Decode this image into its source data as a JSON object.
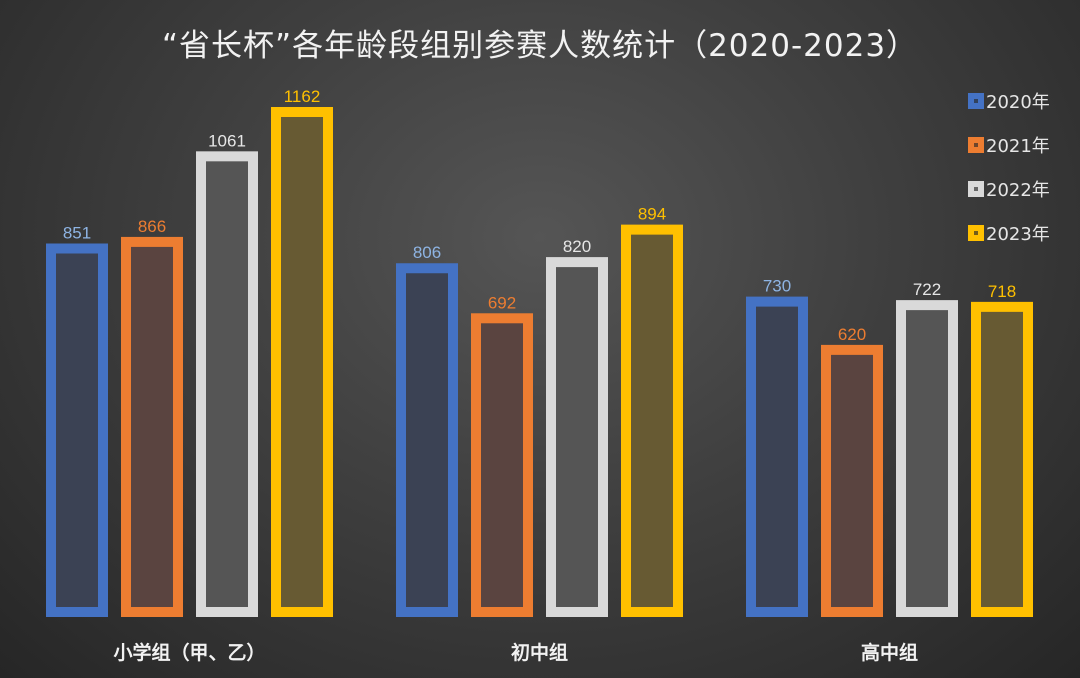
{
  "chart_data": {
    "type": "bar",
    "title": "“省长杯”各年龄段组别参赛人数统计（2020-2023）",
    "xlabel": "",
    "ylabel": "",
    "categories": [
      "小学组（甲、乙）",
      "初中组",
      "高中组"
    ],
    "series": [
      {
        "name": "2020年",
        "values": [
          851,
          806,
          730
        ],
        "color": "#4472C4",
        "fill": "#3b4254",
        "label_color": "#8eb4e3"
      },
      {
        "name": "2021年",
        "values": [
          866,
          692,
          620
        ],
        "color": "#ED7D31",
        "fill": "#5a4440",
        "label_color": "#ED7D31"
      },
      {
        "name": "2022年",
        "values": [
          1061,
          820,
          722
        ],
        "color": "#D9D9D9",
        "fill": "#555555",
        "label_color": "#e6e6e6"
      },
      {
        "name": "2023年",
        "values": [
          1162,
          894,
          718
        ],
        "color": "#FFC000",
        "fill": "#675a33",
        "label_color": "#FFC000"
      }
    ],
    "ylim": [
      0,
      1200
    ],
    "grid": false,
    "legend_position": "top-right"
  }
}
